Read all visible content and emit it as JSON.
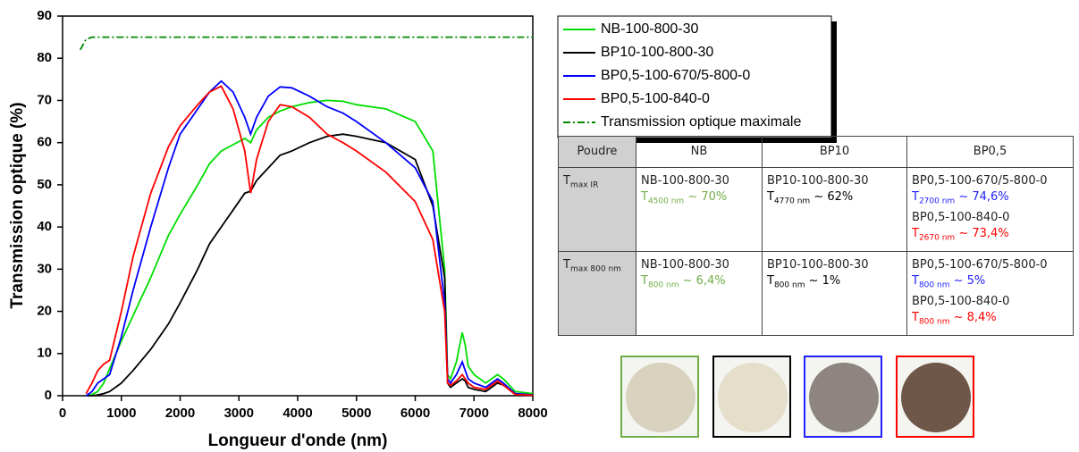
{
  "chart_data": {
    "type": "line",
    "xlabel": "Longueur d'onde (nm)",
    "ylabel": "Transmission optique (%)",
    "xlim": [
      0,
      8000
    ],
    "ylim": [
      0,
      90
    ],
    "xticks": [
      0,
      1000,
      2000,
      3000,
      4000,
      5000,
      6000,
      7000,
      8000
    ],
    "yticks": [
      0,
      10,
      20,
      30,
      40,
      50,
      60,
      70,
      80,
      90
    ],
    "x": [
      300,
      400,
      500,
      600,
      700,
      800,
      1000,
      1200,
      1500,
      1800,
      2000,
      2300,
      2500,
      2700,
      2900,
      3100,
      3200,
      3300,
      3500,
      3700,
      3900,
      4200,
      4500,
      4770,
      5000,
      5500,
      6000,
      6300,
      6500,
      6550,
      6600,
      6700,
      6800,
      6850,
      6900,
      7000,
      7200,
      7400,
      7500,
      7700,
      8000
    ],
    "series": [
      {
        "name": "NB-100-800-30",
        "color": "#00dd00",
        "style": "solid",
        "values": [
          null,
          0,
          0.3,
          1,
          3,
          6.4,
          13,
          19,
          28,
          38,
          43,
          50,
          55,
          58,
          59.5,
          61,
          60,
          63,
          66,
          67.5,
          68.5,
          69.5,
          70,
          69.8,
          69,
          68,
          65,
          58,
          30,
          5,
          4,
          8,
          15,
          12,
          7,
          5,
          3,
          5,
          4,
          1,
          0.5
        ]
      },
      {
        "name": "BP10-100-800-30",
        "color": "#000000",
        "style": "solid",
        "values": [
          null,
          0,
          0,
          0.2,
          0.5,
          1,
          3,
          6,
          11,
          17,
          22,
          30,
          36,
          40,
          44,
          48,
          48.5,
          51,
          54,
          57,
          58,
          60,
          61.5,
          62,
          61.5,
          60,
          56,
          45,
          28,
          3,
          2,
          3,
          4,
          3.5,
          2,
          1.5,
          1,
          3,
          2.5,
          0.5,
          0.2
        ]
      },
      {
        "name": "BP0,5-100-670/5-800-0",
        "color": "#0000ff",
        "style": "solid",
        "values": [
          null,
          0,
          1,
          3,
          4,
          5,
          14,
          25,
          40,
          54,
          62,
          68,
          72,
          74.6,
          72,
          66,
          62,
          66,
          71,
          73.2,
          73,
          71,
          68.5,
          67,
          65,
          60,
          54,
          46,
          22,
          4,
          3,
          5,
          8,
          6,
          4,
          3,
          2,
          4,
          3,
          0.5,
          0.2
        ]
      },
      {
        "name": "BP0,5-100-840-0",
        "color": "#ff0000",
        "style": "solid",
        "values": [
          null,
          0.5,
          3,
          6,
          7.5,
          8.4,
          20,
          33,
          48,
          59,
          64,
          69,
          72,
          73.4,
          68,
          58,
          48,
          56,
          65,
          69,
          68.5,
          66,
          62,
          60,
          58,
          53,
          46,
          37,
          20,
          3,
          2.5,
          3.5,
          5,
          4,
          3,
          2,
          1.5,
          3.5,
          2.5,
          0.3,
          0.1
        ]
      },
      {
        "name": "Transmission optique maximale",
        "color": "#008800",
        "style": "dashdot",
        "values": [
          82,
          84.5,
          85,
          85,
          85,
          85,
          85,
          85,
          85,
          85,
          85,
          85,
          85,
          85,
          85,
          85,
          85,
          85,
          85,
          85,
          85,
          85,
          85,
          85,
          85,
          85,
          85,
          85,
          85,
          85,
          85,
          85,
          85,
          85,
          85,
          85,
          85,
          85,
          85,
          85,
          85
        ]
      }
    ]
  },
  "table": {
    "header": [
      "Poudre",
      "NB",
      "BP10",
      "BP0,5"
    ],
    "rows": [
      {
        "label": "T",
        "label_sub": "max IR",
        "cells": [
          [
            {
              "text": "NB-100-800-30"
            },
            {
              "text": "T",
              "sub": "4500 nm",
              "rest": " ~ 70%",
              "color": "#70ad47"
            }
          ],
          [
            {
              "text": "BP10-100-800-30"
            },
            {
              "text": "T",
              "sub": "4770 nm",
              "rest": " ~ 62%",
              "color": "#000000"
            }
          ],
          [
            {
              "text": "BP0,5-100-670/5-800-0"
            },
            {
              "text": "T",
              "sub": "2700 nm",
              "rest": " ~ 74,6%",
              "color": "#2020ff"
            },
            {
              "text": "BP0,5-100-840-0"
            },
            {
              "text": "T",
              "sub": "2670 nm",
              "rest": " ~ 73,4%",
              "color": "#ff0000"
            }
          ]
        ]
      },
      {
        "label": "T",
        "label_sub": "max 800 nm",
        "cells": [
          [
            {
              "text": "NB-100-800-30"
            },
            {
              "text": "T",
              "sub": "800 nm",
              "rest": " ~ 6,4%",
              "color": "#70ad47"
            }
          ],
          [
            {
              "text": "BP10-100-800-30"
            },
            {
              "text": "T",
              "sub": "800 nm",
              "rest": " ~ 1%",
              "color": "#000000"
            }
          ],
          [
            {
              "text": "BP0,5-100-670/5-800-0"
            },
            {
              "text": "T",
              "sub": "800 nm",
              "rest": " ~ 5%",
              "color": "#2020ff"
            },
            {
              "text": "BP0,5-100-840-0"
            },
            {
              "text": "T",
              "sub": "800 nm",
              "rest": " ~ 8,4%",
              "color": "#ff0000"
            }
          ]
        ]
      }
    ]
  }
}
